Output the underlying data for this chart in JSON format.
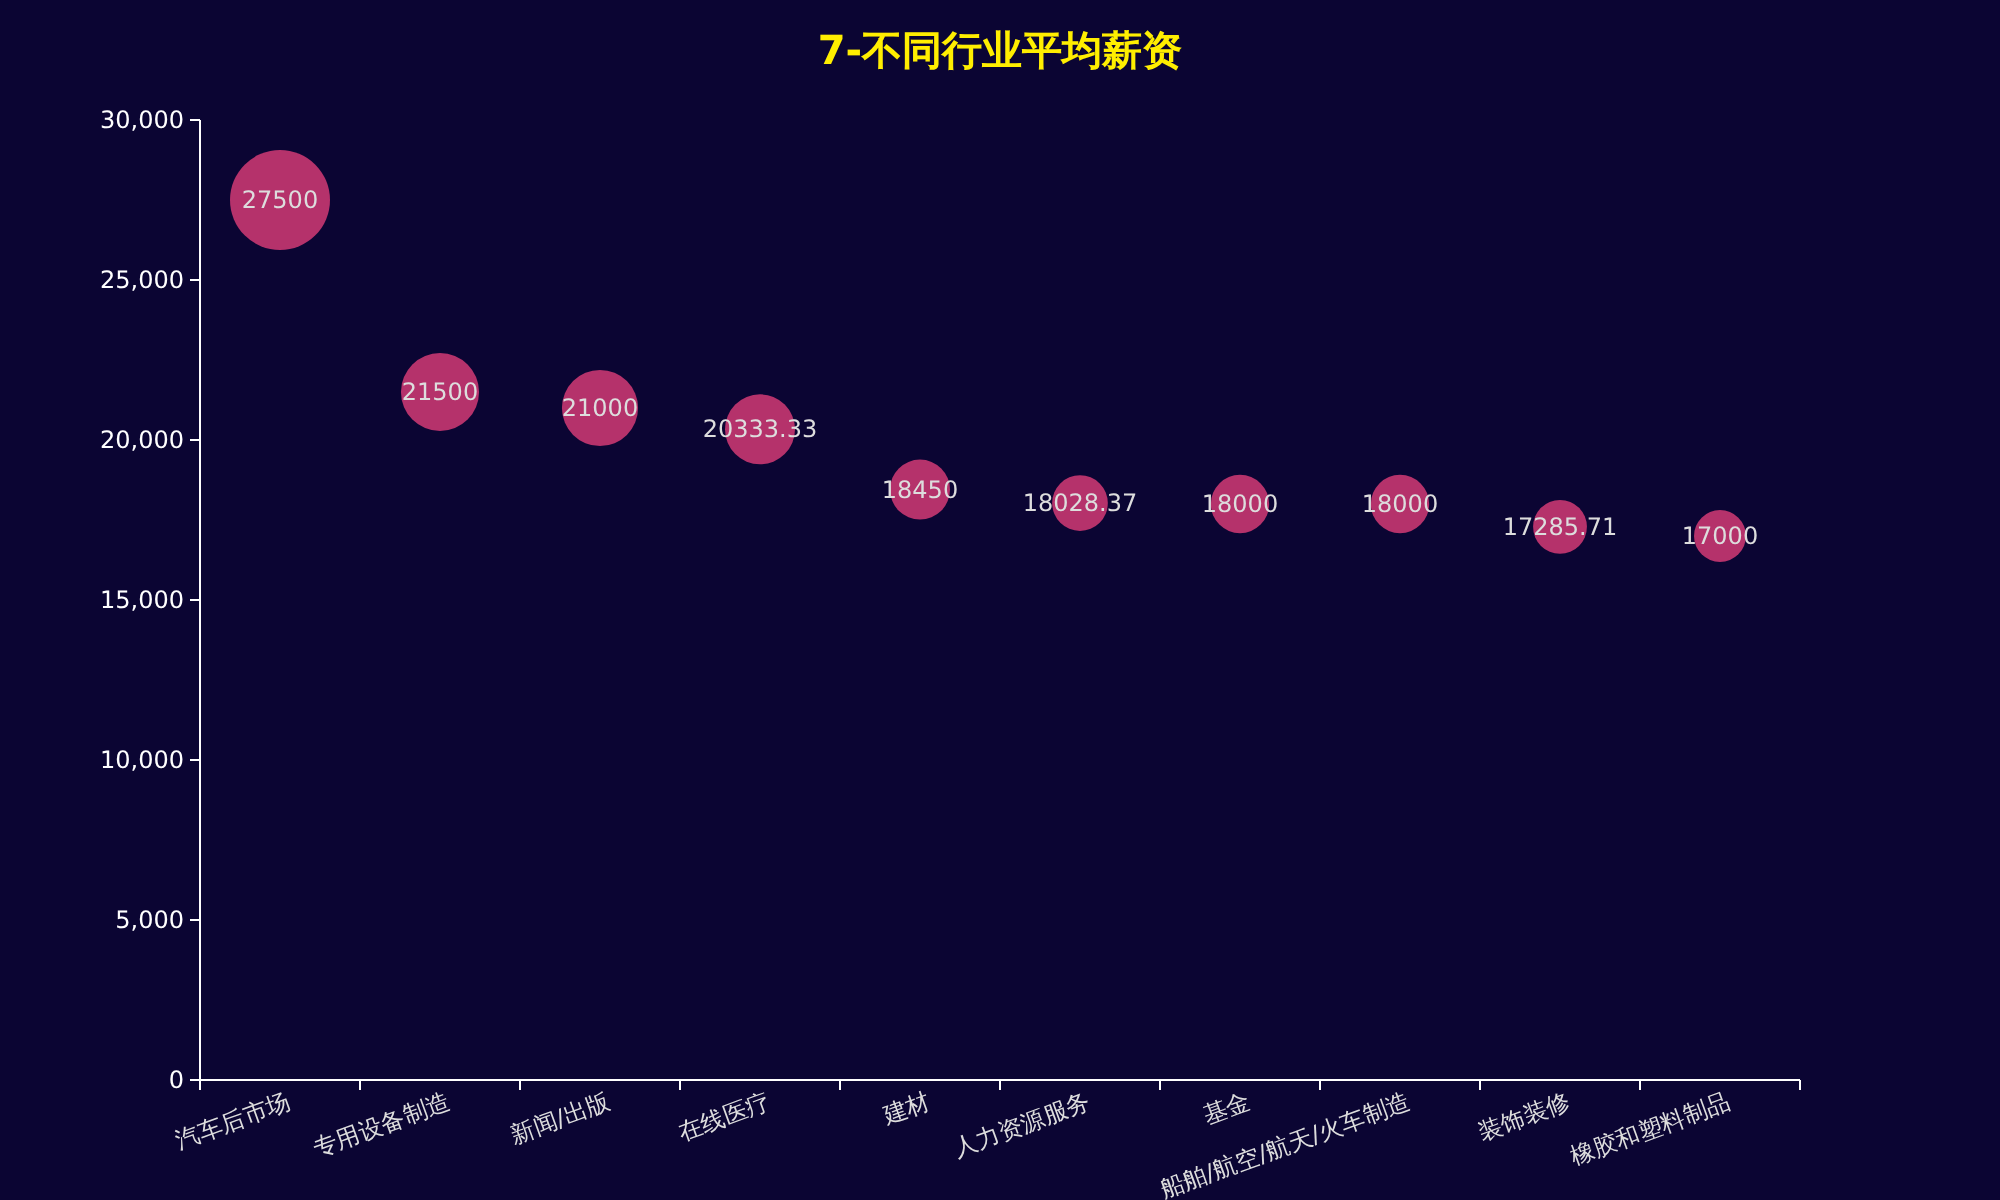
{
  "chart_data": {
    "type": "bubble",
    "title": "7-不同行业平均薪资",
    "categories": [
      "汽车后市场",
      "专用设备制造",
      "新闻/出版",
      "在线医疗",
      "建材",
      "人力资源服务",
      "基金",
      "船舶/航空/航天/火车制造",
      "装饰装修",
      "橡胶和塑料制品"
    ],
    "values": [
      27500,
      21500,
      21000,
      20333.33,
      18450,
      18028.37,
      18000,
      18000,
      17285.71,
      17000
    ],
    "sizes": [
      1,
      0.61,
      0.58,
      0.49,
      0.36,
      0.31,
      0.34,
      0.34,
      0.29,
      0.27
    ],
    "color": "#b5326b",
    "ylim": [
      0,
      30000
    ],
    "yticks": [
      {
        "value": 0,
        "label": "0"
      },
      {
        "value": 5000,
        "label": "5,000"
      },
      {
        "value": 10000,
        "label": "10,000"
      },
      {
        "value": 15000,
        "label": "15,000"
      },
      {
        "value": 20000,
        "label": "20,000"
      },
      {
        "value": 25000,
        "label": "25,000"
      },
      {
        "value": 30000,
        "label": "30,000"
      }
    ],
    "data_labels": true,
    "grid": false
  }
}
